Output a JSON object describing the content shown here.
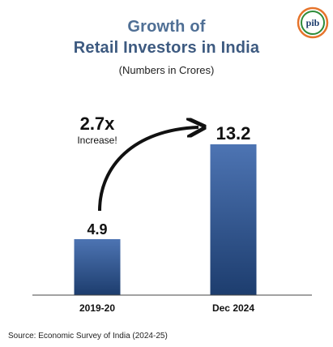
{
  "chart_data": {
    "type": "bar",
    "title": "Growth of",
    "title_line2": "Retail Investors in India",
    "subtitle": "(Numbers in Crores)",
    "categories": [
      "2019-20",
      "Dec 2024"
    ],
    "values": [
      4.9,
      13.2
    ],
    "value_labels": [
      "4.9",
      "13.2"
    ],
    "ylim": [
      0,
      13.2
    ],
    "grid": false,
    "annotation": {
      "multiplier": "2.7x",
      "text": "Increase!"
    },
    "colors": {
      "bar_light": "#4d74b3",
      "bar_dark": "#1d3d6e",
      "title": "#4f6f95"
    }
  },
  "source": "Source: Economic Survey of India (2024-25)",
  "logo": {
    "text": "pib",
    "icon": "pib-logo-icon"
  }
}
